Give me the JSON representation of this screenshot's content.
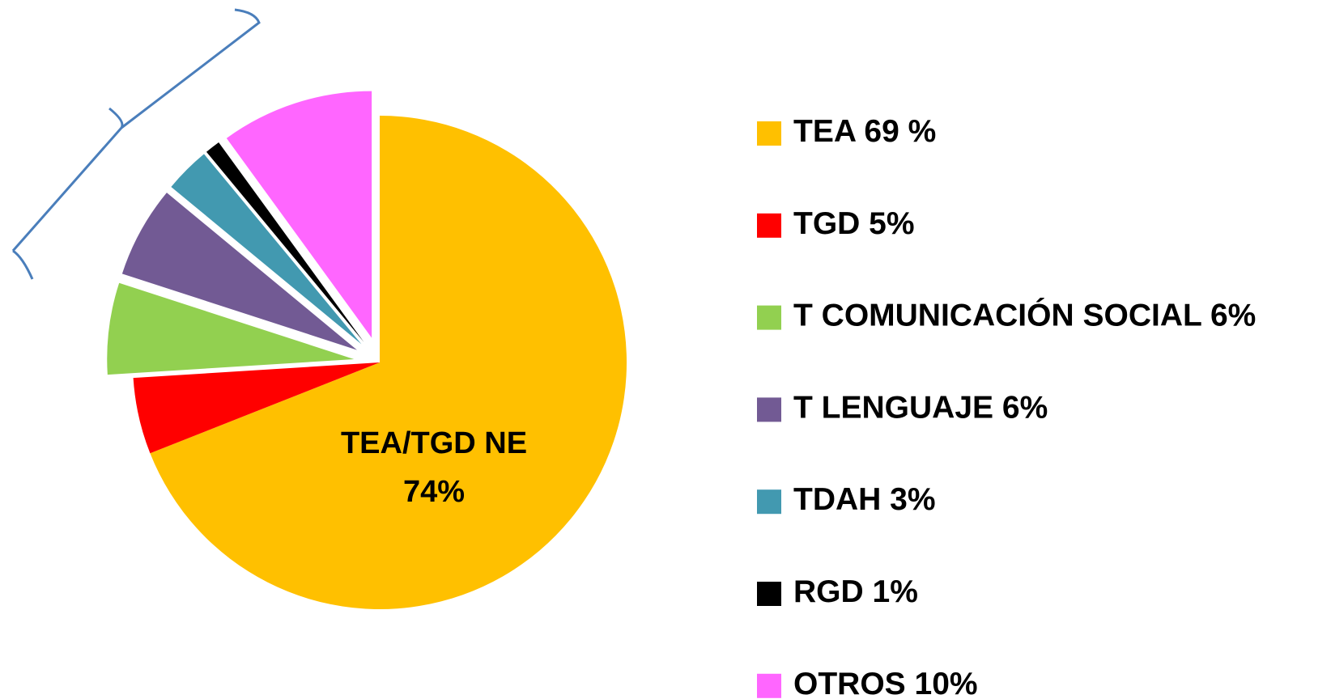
{
  "chart_data": {
    "type": "pie",
    "categories": [
      "TEA",
      "TGD",
      "T COMUNICACIÓN SOCIAL",
      "T LENGUAJE",
      "TDAH",
      "RGD",
      "OTROS"
    ],
    "values": [
      69,
      5,
      6,
      6,
      3,
      1,
      10
    ],
    "value_labels": [
      "69 %",
      "5%",
      "6%",
      "6%",
      "3%",
      "1%",
      "10%"
    ],
    "colors": [
      "#FFC000",
      "#FF0000",
      "#92D050",
      "#725A94",
      "#4299B0",
      "#000000",
      "#FF66FF"
    ],
    "explode": [
      false,
      false,
      true,
      true,
      true,
      true,
      true
    ],
    "annotation": [
      "TEA/TGD NE",
      "74%"
    ],
    "legend": "right"
  }
}
